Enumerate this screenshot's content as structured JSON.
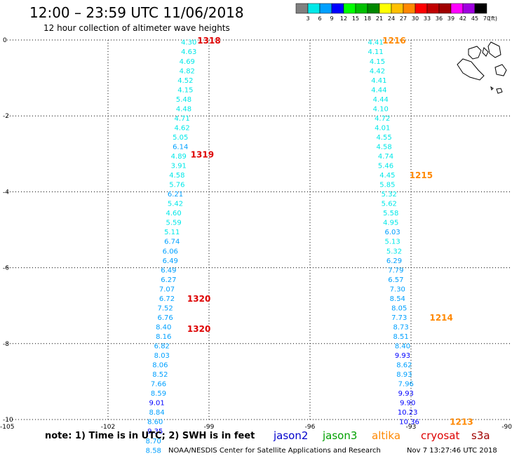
{
  "header": {
    "title": "12:00 – 23:59 UTC 11/06/2018",
    "subtitle": "12 hour collection of altimeter wave heights"
  },
  "colorbar": {
    "labels": [
      "3",
      "6",
      "9",
      "12",
      "15",
      "18",
      "21",
      "24",
      "27",
      "30",
      "33",
      "36",
      "39",
      "42",
      "45",
      "70"
    ],
    "unit": "(ft)",
    "colors": [
      "#808080",
      "#00e8e8",
      "#00a0ff",
      "#0000ff",
      "#00ff00",
      "#00c000",
      "#008800",
      "#ffff00",
      "#ffc000",
      "#ff8800",
      "#ff0000",
      "#c00000",
      "#a00000",
      "#ff00ff",
      "#a000e0",
      "#000000"
    ]
  },
  "footer": {
    "note": "note: 1) Time is in UTC; 2) SWH is in feet",
    "credit": "NOAA/NESDIS Center for Satellite Applications and Research",
    "timestamp": "Nov  7 13:27:46 UTC 2018",
    "satellites": [
      {
        "name": "jason2",
        "color": "#0000cc"
      },
      {
        "name": "jason3",
        "color": "#00a000"
      },
      {
        "name": "altika",
        "color": "#ff8800"
      },
      {
        "name": "cryosat",
        "color": "#dd0000"
      },
      {
        "name": "s3a",
        "color": "#a00000"
      }
    ]
  },
  "chart_data": {
    "type": "scatter",
    "title": "12:00 – 23:59 UTC 11/06/2018",
    "subtitle": "12 hour collection of altimeter wave heights",
    "xlim": [
      -105,
      -90
    ],
    "ylim": [
      -10,
      0
    ],
    "x_ticks": [
      "-105",
      "-102",
      "-99",
      "-96",
      "-93",
      "-90"
    ],
    "y_ticks": [
      "0",
      "-2",
      "-4",
      "-6",
      "-8",
      "-10"
    ],
    "grid": true,
    "series": [
      {
        "name": "cryosat",
        "color": "#dd0000",
        "points": [
          {
            "lon": -99.6,
            "lat": -0.05,
            "swh": "4.30"
          },
          {
            "lon": -99.6,
            "lat": -0.3,
            "swh": "4.63"
          },
          {
            "lon": -99.65,
            "lat": -0.55,
            "swh": "4.69"
          },
          {
            "lon": -99.65,
            "lat": -0.8,
            "swh": "4.82"
          },
          {
            "lon": -99.7,
            "lat": -1.05,
            "swh": "4.52"
          },
          {
            "lon": -99.7,
            "lat": -1.3,
            "swh": "4.15"
          },
          {
            "lon": -99.75,
            "lat": -1.55,
            "swh": "5.48"
          },
          {
            "lon": -99.75,
            "lat": -1.8,
            "swh": "4.48"
          },
          {
            "lon": -99.8,
            "lat": -2.05,
            "swh": "4.71"
          },
          {
            "lon": -99.8,
            "lat": -2.3,
            "swh": "4.62"
          },
          {
            "lon": -99.85,
            "lat": -2.55,
            "swh": "5.05"
          },
          {
            "lon": -99.85,
            "lat": -2.8,
            "swh": "6.14"
          },
          {
            "lon": -99.9,
            "lat": -3.05,
            "swh": "4.89"
          },
          {
            "lon": -99.9,
            "lat": -3.3,
            "swh": "3.91"
          },
          {
            "lon": -99.95,
            "lat": -3.55,
            "swh": "4.58"
          },
          {
            "lon": -99.95,
            "lat": -3.8,
            "swh": "5.76"
          },
          {
            "lon": -100.0,
            "lat": -4.05,
            "swh": "6.21"
          },
          {
            "lon": -100.0,
            "lat": -4.3,
            "swh": "5.42"
          },
          {
            "lon": -100.05,
            "lat": -4.55,
            "swh": "4.60"
          },
          {
            "lon": -100.05,
            "lat": -4.8,
            "swh": "5.59"
          },
          {
            "lon": -100.1,
            "lat": -5.05,
            "swh": "5.11"
          },
          {
            "lon": -100.1,
            "lat": -5.3,
            "swh": "6.74"
          },
          {
            "lon": -100.15,
            "lat": -5.55,
            "swh": "6.06"
          },
          {
            "lon": -100.15,
            "lat": -5.8,
            "swh": "6.49"
          },
          {
            "lon": -100.2,
            "lat": -6.05,
            "swh": "6.49"
          },
          {
            "lon": -100.2,
            "lat": -6.3,
            "swh": "6.27"
          },
          {
            "lon": -100.25,
            "lat": -6.55,
            "swh": "7.07"
          },
          {
            "lon": -100.25,
            "lat": -6.8,
            "swh": "6.72"
          },
          {
            "lon": -100.3,
            "lat": -7.05,
            "swh": "7.52"
          },
          {
            "lon": -100.3,
            "lat": -7.3,
            "swh": "6.76"
          },
          {
            "lon": -100.35,
            "lat": -7.55,
            "swh": "8.40"
          },
          {
            "lon": -100.35,
            "lat": -7.8,
            "swh": "8.16"
          },
          {
            "lon": -100.4,
            "lat": -8.05,
            "swh": "6.82"
          },
          {
            "lon": -100.4,
            "lat": -8.3,
            "swh": "8.03"
          },
          {
            "lon": -100.45,
            "lat": -8.55,
            "swh": "8.06"
          },
          {
            "lon": -100.45,
            "lat": -8.8,
            "swh": "8.52"
          },
          {
            "lon": -100.5,
            "lat": -9.05,
            "swh": "7.66"
          },
          {
            "lon": -100.5,
            "lat": -9.3,
            "swh": "8.59"
          },
          {
            "lon": -100.55,
            "lat": -9.55,
            "swh": "9.01"
          },
          {
            "lon": -100.55,
            "lat": -9.8,
            "swh": "8.84"
          },
          {
            "lon": -100.6,
            "lat": -10.05,
            "swh": "8.60"
          },
          {
            "lon": -100.6,
            "lat": -10.3,
            "swh": "9.35"
          },
          {
            "lon": -100.65,
            "lat": -10.55,
            "swh": "8.70"
          },
          {
            "lon": -100.65,
            "lat": -10.8,
            "swh": "8.58"
          }
        ],
        "pass_labels": [
          {
            "text": "1318",
            "lon": -99.0,
            "lat": 0.0
          },
          {
            "text": "1319",
            "lon": -99.2,
            "lat": -3.0
          },
          {
            "text": "1320",
            "lon": -99.3,
            "lat": -6.8
          },
          {
            "text": "1320",
            "lon": -99.3,
            "lat": -7.6
          }
        ]
      },
      {
        "name": "altika",
        "color": "#ff8800",
        "points": [
          {
            "lon": -94.05,
            "lat": -0.05,
            "swh": "4.41"
          },
          {
            "lon": -94.05,
            "lat": -0.3,
            "swh": "4.11"
          },
          {
            "lon": -94.0,
            "lat": -0.55,
            "swh": "4.15"
          },
          {
            "lon": -94.0,
            "lat": -0.8,
            "swh": "4.42"
          },
          {
            "lon": -93.95,
            "lat": -1.05,
            "swh": "4.41"
          },
          {
            "lon": -93.95,
            "lat": -1.3,
            "swh": "4.44"
          },
          {
            "lon": -93.9,
            "lat": -1.55,
            "swh": "4.44"
          },
          {
            "lon": -93.9,
            "lat": -1.8,
            "swh": "4.10"
          },
          {
            "lon": -93.85,
            "lat": -2.05,
            "swh": "4.72"
          },
          {
            "lon": -93.85,
            "lat": -2.3,
            "swh": "4.01"
          },
          {
            "lon": -93.8,
            "lat": -2.55,
            "swh": "4.55"
          },
          {
            "lon": -93.8,
            "lat": -2.8,
            "swh": "4.58"
          },
          {
            "lon": -93.75,
            "lat": -3.05,
            "swh": "4.74"
          },
          {
            "lon": -93.75,
            "lat": -3.3,
            "swh": "5.46"
          },
          {
            "lon": -93.7,
            "lat": -3.55,
            "swh": "4.45"
          },
          {
            "lon": -93.7,
            "lat": -3.8,
            "swh": "5.85"
          },
          {
            "lon": -93.65,
            "lat": -4.05,
            "swh": "5.32"
          },
          {
            "lon": -93.65,
            "lat": -4.3,
            "swh": "5.62"
          },
          {
            "lon": -93.6,
            "lat": -4.55,
            "swh": "5.58"
          },
          {
            "lon": -93.6,
            "lat": -4.8,
            "swh": "4.95"
          },
          {
            "lon": -93.55,
            "lat": -5.05,
            "swh": "6.03"
          },
          {
            "lon": -93.55,
            "lat": -5.3,
            "swh": "5.13"
          },
          {
            "lon": -93.5,
            "lat": -5.55,
            "swh": "5.32"
          },
          {
            "lon": -93.5,
            "lat": -5.8,
            "swh": "6.29"
          },
          {
            "lon": -93.45,
            "lat": -6.05,
            "swh": "7.79"
          },
          {
            "lon": -93.45,
            "lat": -6.3,
            "swh": "6.57"
          },
          {
            "lon": -93.4,
            "lat": -6.55,
            "swh": "7.30"
          },
          {
            "lon": -93.4,
            "lat": -6.8,
            "swh": "8.54"
          },
          {
            "lon": -93.35,
            "lat": -7.05,
            "swh": "8.05"
          },
          {
            "lon": -93.35,
            "lat": -7.3,
            "swh": "7.73"
          },
          {
            "lon": -93.3,
            "lat": -7.55,
            "swh": "8.73"
          },
          {
            "lon": -93.3,
            "lat": -7.8,
            "swh": "8.51"
          },
          {
            "lon": -93.25,
            "lat": -8.05,
            "swh": "8.40"
          },
          {
            "lon": -93.25,
            "lat": -8.3,
            "swh": "9.93"
          },
          {
            "lon": -93.2,
            "lat": -8.55,
            "swh": "8.62"
          },
          {
            "lon": -93.2,
            "lat": -8.8,
            "swh": "8.93"
          },
          {
            "lon": -93.15,
            "lat": -9.05,
            "swh": "7.96"
          },
          {
            "lon": -93.15,
            "lat": -9.3,
            "swh": "9.93"
          },
          {
            "lon": -93.1,
            "lat": -9.55,
            "swh": "9.90"
          },
          {
            "lon": -93.1,
            "lat": -9.8,
            "swh": "10.23"
          },
          {
            "lon": -93.05,
            "lat": -10.05,
            "swh": "10.36"
          }
        ],
        "pass_labels": [
          {
            "text": "1216",
            "lon": -93.5,
            "lat": 0.0
          },
          {
            "text": "1215",
            "lon": -92.7,
            "lat": -3.55
          },
          {
            "text": "1214",
            "lon": -92.1,
            "lat": -7.3
          },
          {
            "text": "1213",
            "lon": -91.5,
            "lat": -10.05
          }
        ]
      }
    ]
  }
}
